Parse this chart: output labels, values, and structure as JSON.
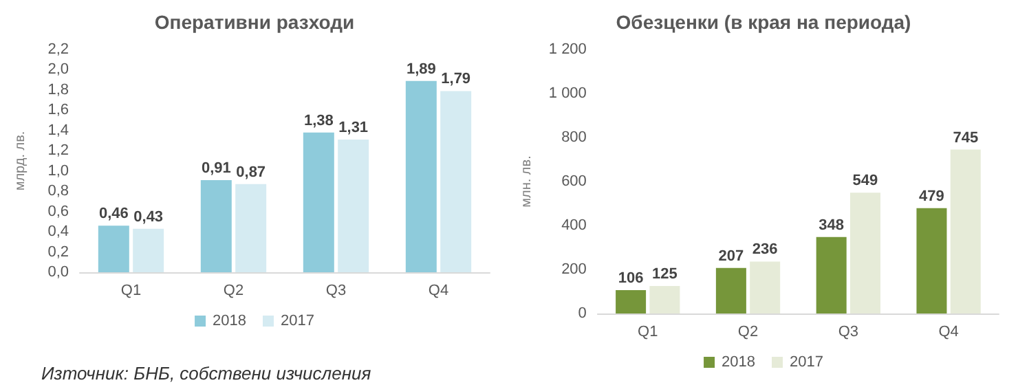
{
  "chart_data": [
    {
      "type": "bar",
      "title": "Оперативни разходи",
      "ylabel": "млрд. лв.",
      "categories": [
        "Q1",
        "Q2",
        "Q3",
        "Q4"
      ],
      "series": [
        {
          "name": "2018",
          "color": "#8ecbdb",
          "values": [
            0.46,
            0.91,
            1.38,
            1.89
          ],
          "value_labels": [
            "0,46",
            "0,91",
            "1,38",
            "1,89"
          ]
        },
        {
          "name": "2017",
          "color": "#d5ebf2",
          "values": [
            0.43,
            0.87,
            1.31,
            1.79
          ],
          "value_labels": [
            "0,43",
            "0,87",
            "1,31",
            "1,79"
          ]
        }
      ],
      "ylim": [
        0,
        2.2
      ],
      "yticks": [
        {
          "value": 0,
          "label": "0,0"
        },
        {
          "value": 0.2,
          "label": "0,2"
        },
        {
          "value": 0.4,
          "label": "0,4"
        },
        {
          "value": 0.6,
          "label": "0,6"
        },
        {
          "value": 0.8,
          "label": "0,8"
        },
        {
          "value": 1,
          "label": "1,0"
        },
        {
          "value": 1.2,
          "label": "1,2"
        },
        {
          "value": 1.4,
          "label": "1,4"
        },
        {
          "value": 1.6,
          "label": "1,6"
        },
        {
          "value": 1.8,
          "label": "1,8"
        },
        {
          "value": 2,
          "label": "2,0"
        },
        {
          "value": 2.2,
          "label": "2,2"
        }
      ],
      "grid": false,
      "legend": "bottom",
      "annotations": [
        "Източник: БНБ, собствени изчисления"
      ]
    },
    {
      "type": "bar",
      "title": "Обезценки (в края на периода)",
      "ylabel": "млн. лв.",
      "categories": [
        "Q1",
        "Q2",
        "Q3",
        "Q4"
      ],
      "series": [
        {
          "name": "2018",
          "color": "#76963a",
          "values": [
            106,
            207,
            348,
            479
          ]
        },
        {
          "name": "2017",
          "color": "#e6ebd8",
          "values": [
            125,
            236,
            549,
            745
          ]
        }
      ],
      "ylim": [
        0,
        1200
      ],
      "yticks": [
        0,
        200,
        400,
        600,
        800,
        {
          "value": 1000,
          "label": "1 000"
        },
        {
          "value": 1200,
          "label": "1 200"
        }
      ],
      "grid": false,
      "legend": "bottom",
      "data_labels": true
    }
  ]
}
